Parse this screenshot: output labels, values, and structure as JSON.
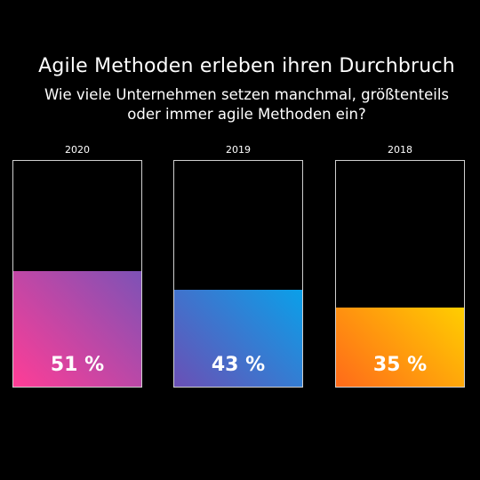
{
  "header": {
    "title": "Agile Methoden erleben ihren Durchbruch",
    "subtitle_line1": "Wie viele Unternehmen setzen manchmal, größtenteils",
    "subtitle_line2": "oder immer agile Methoden ein?"
  },
  "chart_data": {
    "type": "bar",
    "categories": [
      "2020",
      "2019",
      "2018"
    ],
    "values": [
      51,
      43,
      35
    ],
    "value_labels": [
      "51 %",
      "43 %",
      "35 %"
    ],
    "unit": "%",
    "ylim": [
      0,
      100
    ],
    "grid": false,
    "colors": [
      {
        "from": "#ff3d96",
        "to": "#7d52b6"
      },
      {
        "from": "#6b4fb5",
        "to": "#0aa0e9"
      },
      {
        "from": "#ff6a1a",
        "to": "#ffce00"
      }
    ]
  }
}
